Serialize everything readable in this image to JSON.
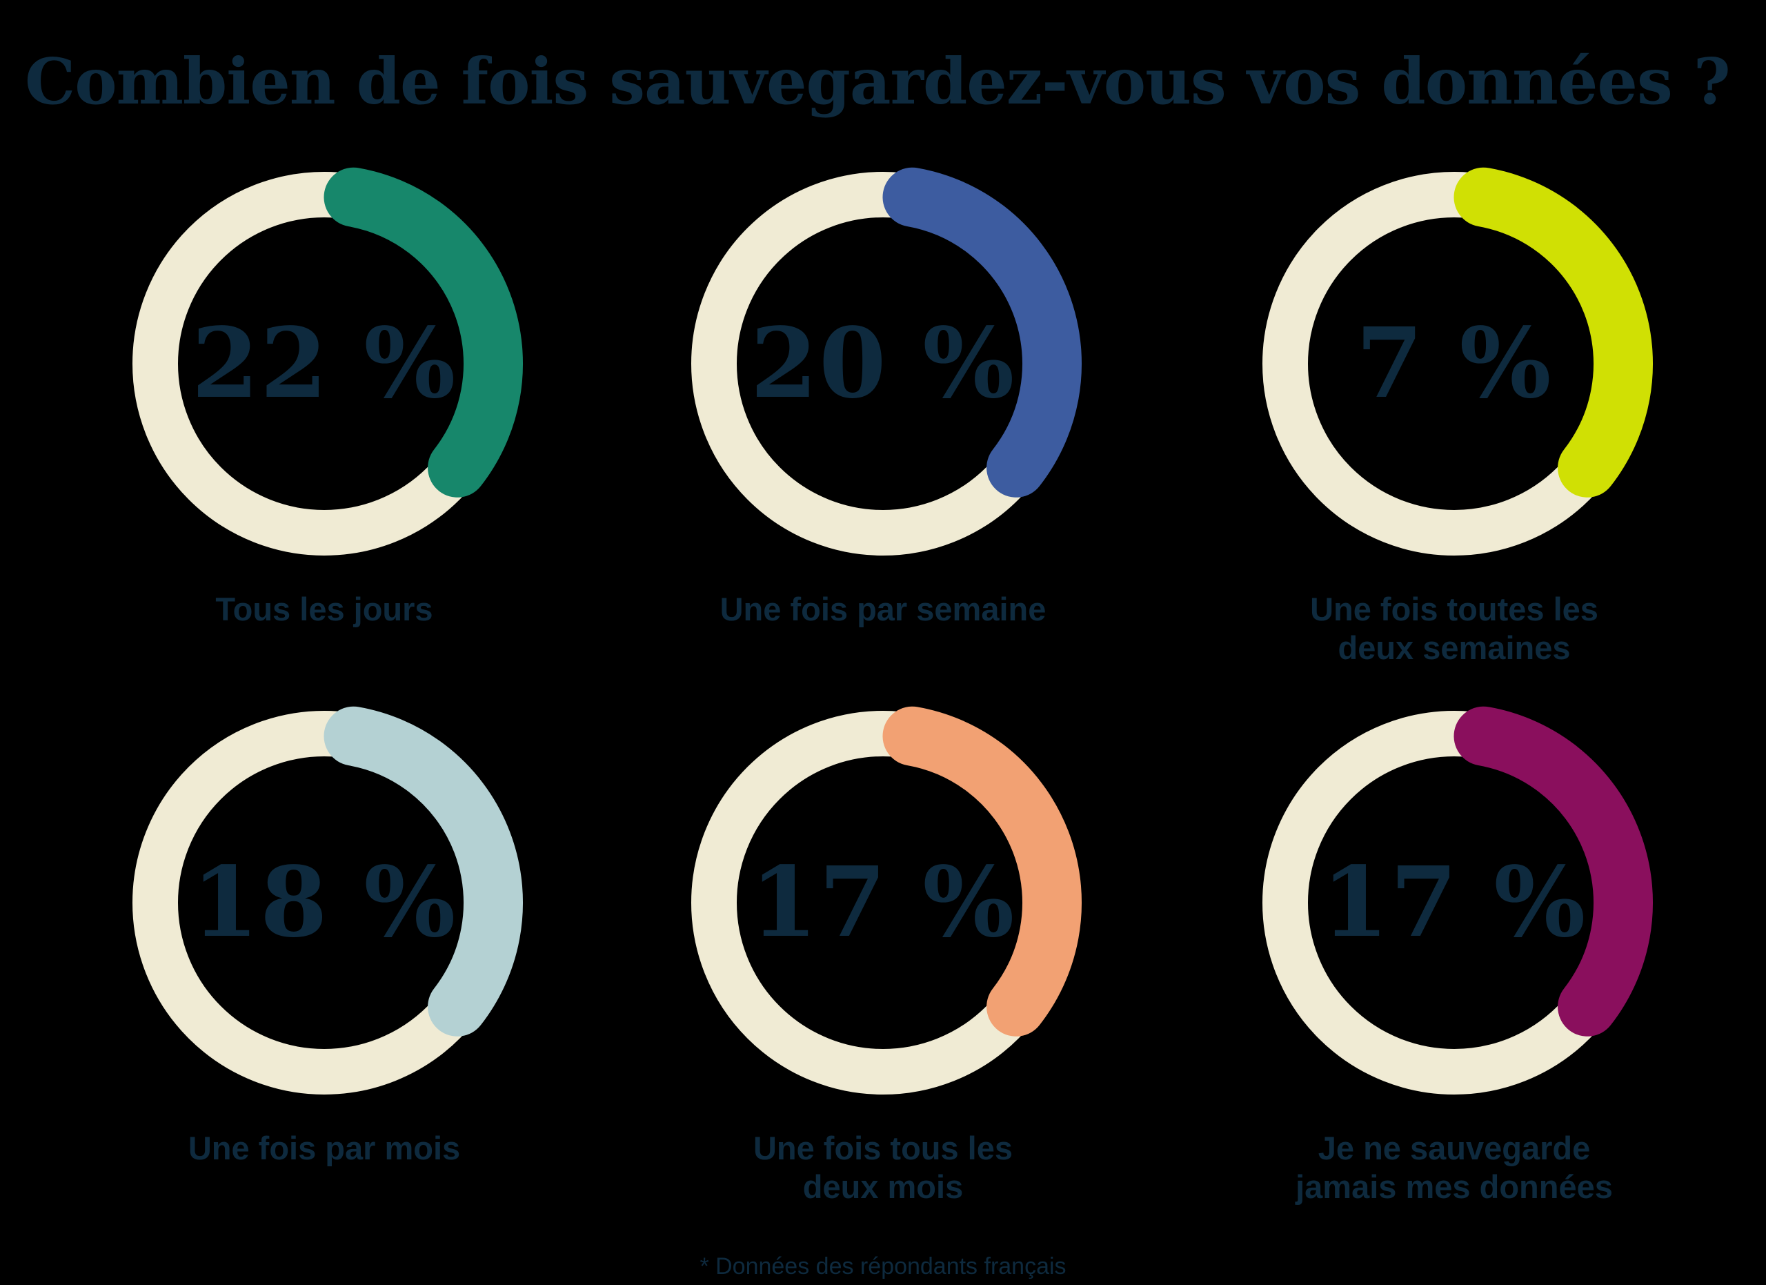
{
  "title": "Combien de fois sauvegardez-vous vos données ?",
  "footnote": "* Données des répondants français",
  "colors": {
    "background": "#000000",
    "text_navy": "#0e2a3e",
    "ring_cream": "#f0ebd4"
  },
  "chart_data": {
    "type": "pie",
    "subtype": "donut-grid",
    "title": "Combien de fois sauvegardez-vous vos données ?",
    "unit": "%",
    "legend_position": "below-each-donut",
    "arc_start_deg": 10,
    "arc_end_deg": 128,
    "note": "each donut shows one percentage; colored arc starts at 12 o'clock and sweeps clockwise with rounded caps",
    "categories": [
      "Tous les jours",
      "Une fois par semaine",
      "Une fois toutes les deux semaines",
      "Une fois par mois",
      "Une fois tous les deux mois",
      "Je ne sauvegarde jamais mes données"
    ],
    "values": [
      22,
      20,
      7,
      18,
      17,
      17
    ],
    "items": [
      {
        "label": "Tous les jours",
        "value": 22,
        "display": "22 %",
        "color": "#17876b"
      },
      {
        "label": "Une fois par semaine",
        "value": 20,
        "display": "20 %",
        "color": "#3d5ca0"
      },
      {
        "label": "Une fois toutes les\ndeux semaines",
        "value": 7,
        "display": "7 %",
        "color": "#d0e004"
      },
      {
        "label": "Une fois par mois",
        "value": 18,
        "display": "18 %",
        "color": "#b4d1d3"
      },
      {
        "label": "Une fois tous les\ndeux mois",
        "value": 17,
        "display": "17 %",
        "color": "#f2a173"
      },
      {
        "label": "Je ne sauvegarde\njamais mes données",
        "value": 17,
        "display": "17 %",
        "color": "#8a0f5d"
      }
    ]
  }
}
